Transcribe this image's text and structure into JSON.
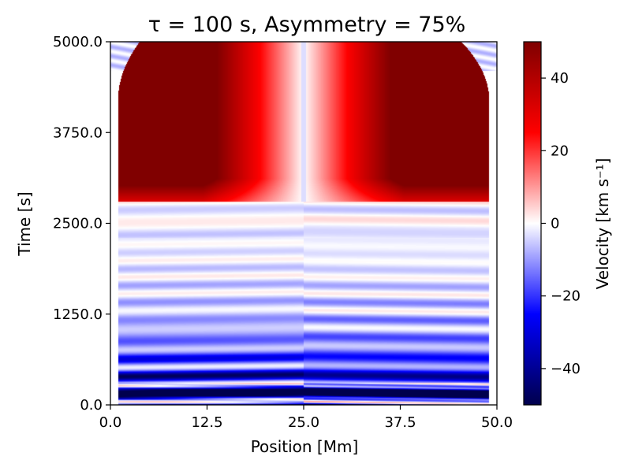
{
  "chart_data": {
    "type": "heatmap",
    "title": "τ = 100 s, Asymmetry = 75%",
    "xlabel": "Position [Mm]",
    "ylabel": "Time [s]",
    "xlim": [
      0.0,
      50.0
    ],
    "ylim": [
      0.0,
      5000.0
    ],
    "x_ticks": [
      0.0,
      12.5,
      25.0,
      37.5,
      50.0
    ],
    "x_tick_labels": [
      "0.0",
      "12.5",
      "25.0",
      "37.5",
      "50.0"
    ],
    "y_ticks": [
      0.0,
      1250.0,
      2500.0,
      3750.0,
      5000.0
    ],
    "y_tick_labels": [
      "0.0",
      "1250.0",
      "2500.0",
      "3750.0",
      "5000.0"
    ],
    "colorbar": {
      "label": "Velocity [km s⁻¹]",
      "range": [
        -50,
        50
      ],
      "ticks": [
        40,
        20,
        0,
        -20,
        -40
      ],
      "tick_labels": [
        "40",
        "20",
        "0",
        "−20",
        "−40"
      ],
      "colormap": "seismic",
      "colors": {
        "low": "#00004c",
        "mid_low": "#0000ff",
        "zero": "#ffffff",
        "mid_high": "#ff0000",
        "high": "#800000"
      }
    },
    "field_summary": {
      "oscillating_phase_time_range": [
        0,
        2800
      ],
      "initial_amplitude_kms": -45,
      "outflow_phase_time_range": [
        2800,
        5000
      ],
      "outflow_amplitude_kms": 50,
      "center_position": 25.0,
      "domain_edge_positions": [
        1.0,
        49.0
      ]
    }
  }
}
